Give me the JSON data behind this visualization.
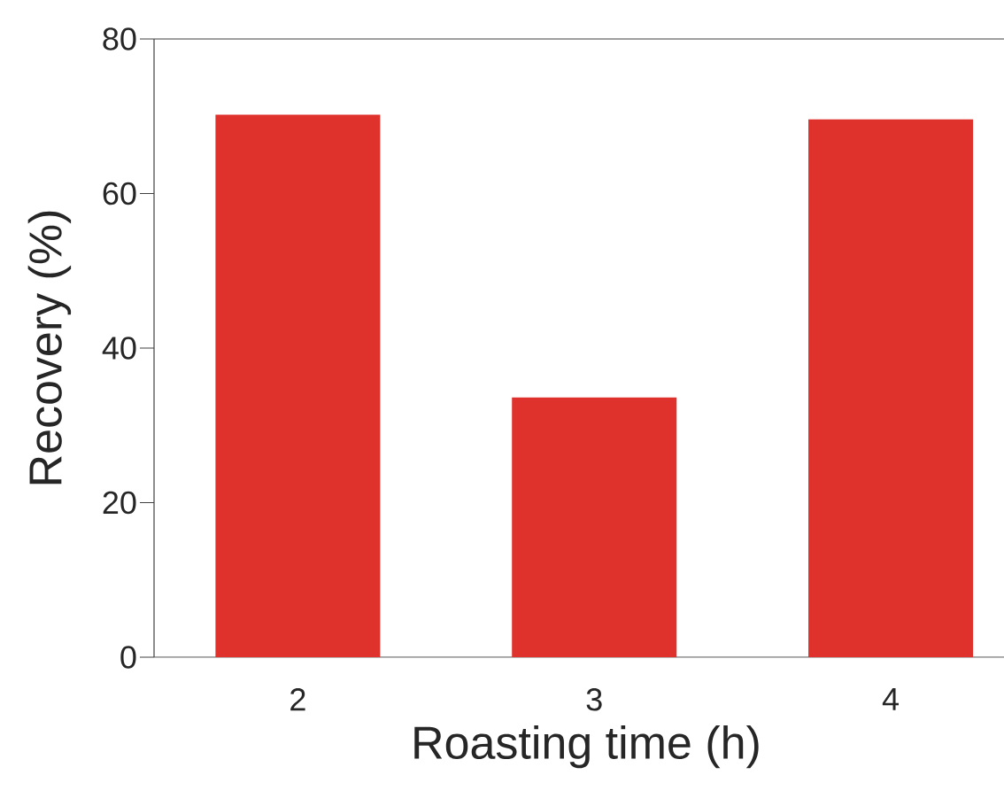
{
  "chart_data": {
    "type": "bar",
    "xlabel": "Roasting time (h)",
    "ylabel": "Recovery (%)",
    "categories": [
      "2",
      "3",
      "4"
    ],
    "values": [
      70.2,
      33.6,
      69.6
    ],
    "color": "#e0322c",
    "ylim": [
      0,
      80
    ],
    "yticks": [
      0,
      20,
      40,
      60,
      80
    ],
    "grid": false
  }
}
